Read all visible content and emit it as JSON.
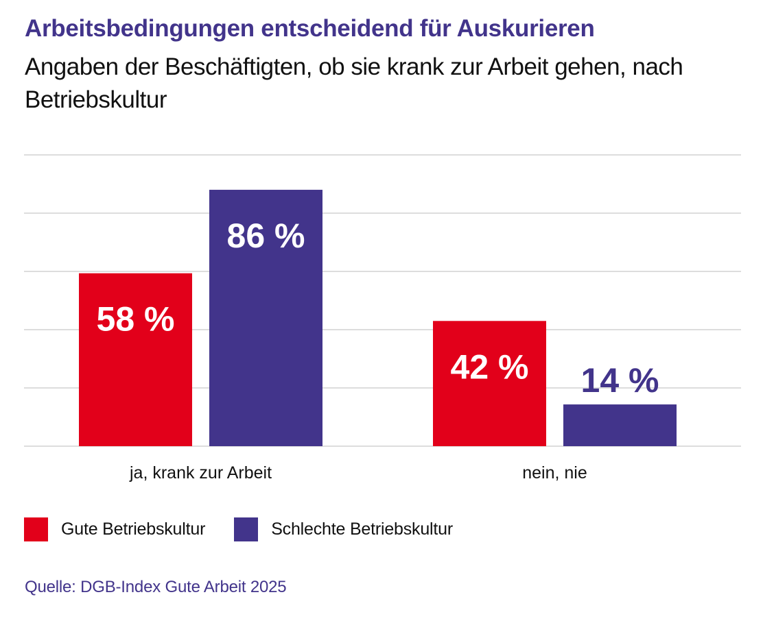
{
  "header": {
    "title": "Arbeitsbedingungen entscheidend für Auskurieren",
    "subtitle": "Angaben der Beschäftigten, ob sie krank zur Arbeit gehen, nach Betriebskultur"
  },
  "colors": {
    "gute": "#E2001A",
    "schlechte": "#42348B",
    "grid": "#DDDDDD",
    "label_inside": "#FFFFFF"
  },
  "chart_data": {
    "type": "bar",
    "title": "Arbeitsbedingungen entscheidend für Auskurieren",
    "subtitle": "Angaben der Beschäftigten, ob sie krank zur Arbeit gehen, nach Betriebskultur",
    "categories": [
      "ja, krank zur Arbeit",
      "nein, nie"
    ],
    "series": [
      {
        "name": "Gute Betriebskultur",
        "values": [
          58,
          42
        ],
        "labels": [
          "58 %",
          "42 %"
        ]
      },
      {
        "name": "Schlechte Betriebskultur",
        "values": [
          86,
          14
        ],
        "labels": [
          "86 %",
          "14 %"
        ]
      }
    ],
    "unit": "%",
    "xlabel": "",
    "ylabel": "",
    "ylim": [
      0,
      100
    ],
    "grid": true,
    "y_tick_labels_shown": false,
    "legend_position": "bottom-left"
  },
  "legend": {
    "items": [
      {
        "label": "Gute Betriebskultur"
      },
      {
        "label": "Schlechte Betriebskultur"
      }
    ]
  },
  "footer": {
    "source": "Quelle: DGB-Index Gute Arbeit 2025"
  }
}
